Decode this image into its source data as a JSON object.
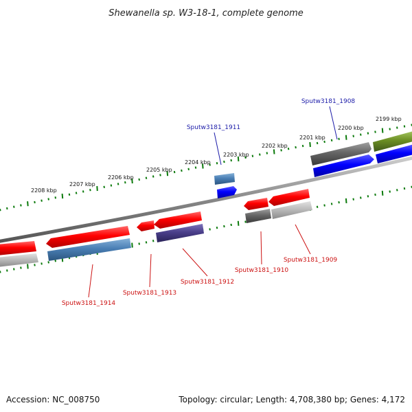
{
  "title": "Shewanella sp. W3-18-1, complete genome",
  "footer": {
    "accession": "Accession: NC_008750",
    "summary": "Topology: circular; Length: 4,708,380 bp; Genes: 4,172"
  },
  "ruler_labels": [
    "2208 kbp",
    "2207 kbp",
    "2206 kbp",
    "2205 kbp",
    "2204 kbp",
    "2203 kbp",
    "2202 kbp",
    "2201 kbp",
    "2200 kbp",
    "2199 kbp"
  ],
  "gene_labels": {
    "forward": [
      "Sputw3181_1911",
      "Sputw3181_1908"
    ],
    "reverse": [
      "Sputw3181_1914",
      "Sputw3181_1913",
      "Sputw3181_1912",
      "Sputw3181_1910",
      "Sputw3181_1909"
    ]
  },
  "colors": {
    "cds_red": "#ff0000",
    "cds_blue": "#0000ff",
    "gene_gray": "#666666",
    "gene_lightgray": "#bbbbbb",
    "gene_steelblue": "#4a7fb5",
    "gene_purple": "#4a3f8a",
    "gene_olive": "#6b8e23",
    "tick_green": "#0b7a0b",
    "backbone_gray": "#888888"
  }
}
